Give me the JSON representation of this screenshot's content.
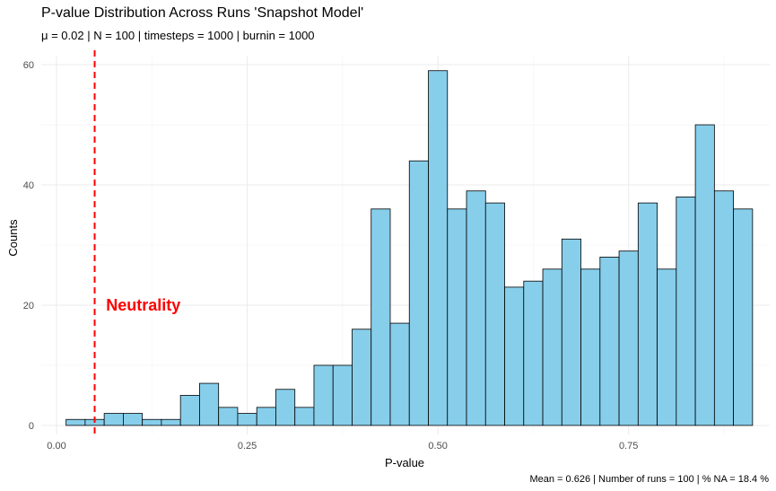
{
  "chart_data": {
    "type": "bar",
    "title": "P-value Distribution Across Runs 'Snapshot Model'",
    "subtitle": "μ = 0.02 | N = 100 | timesteps = 1000 | burnin = 1000",
    "caption": "Mean = 0.626 | Number of runs = 100 | % NA = 18.4 %",
    "xlabel": "P-value",
    "ylabel": "Counts",
    "xlim": [
      -0.02,
      0.935
    ],
    "ylim": [
      -1.5,
      61.5
    ],
    "x_ticks": [
      0,
      0.25,
      0.5,
      0.75
    ],
    "x_tick_labels": [
      "0.00",
      "0.25",
      "0.50",
      "0.75"
    ],
    "y_ticks": [
      0,
      20,
      40,
      60
    ],
    "y_tick_labels": [
      "0",
      "20",
      "40",
      "60"
    ],
    "grid": true,
    "bin_start": 0.0125,
    "bin_width": 0.025,
    "values": [
      1,
      1,
      2,
      2,
      1,
      1,
      5,
      7,
      3,
      2,
      3,
      6,
      3,
      10,
      10,
      16,
      36,
      17,
      44,
      59,
      36,
      39,
      37,
      23,
      24,
      26,
      31,
      26,
      28,
      29,
      37,
      26,
      38,
      50,
      39,
      36
    ],
    "fill_color": "#87CEEB",
    "edge_color": "#000000",
    "vline": {
      "x": 0.05,
      "color": "#ff0000",
      "style": "dashed"
    },
    "annotation": {
      "text": "Neutrality",
      "x": 0.065,
      "y": 20,
      "color": "#ff0000"
    }
  }
}
